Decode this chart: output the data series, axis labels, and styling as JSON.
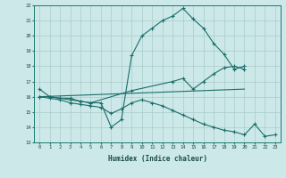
{
  "xlabel": "Humidex (Indice chaleur)",
  "bg_color": "#cce8e8",
  "line_color": "#1a6e6a",
  "grid_color": "#aacccc",
  "xlim": [
    -0.5,
    23.5
  ],
  "ylim": [
    13,
    22
  ],
  "xticks": [
    0,
    1,
    2,
    3,
    4,
    5,
    6,
    7,
    8,
    9,
    10,
    11,
    12,
    13,
    14,
    15,
    16,
    17,
    18,
    19,
    20,
    21,
    22,
    23
  ],
  "yticks": [
    13,
    14,
    15,
    16,
    17,
    18,
    19,
    20,
    21,
    22
  ],
  "line1_x": [
    0,
    1,
    2,
    3,
    4,
    5,
    6,
    7,
    8,
    9,
    10,
    11,
    12,
    13,
    14,
    15,
    16,
    17,
    18,
    19,
    20
  ],
  "line1_y": [
    16.5,
    16.0,
    15.9,
    15.9,
    15.7,
    15.6,
    15.6,
    14.0,
    14.5,
    18.7,
    20.0,
    20.5,
    21.0,
    21.3,
    21.8,
    21.1,
    20.5,
    19.5,
    18.8,
    17.8,
    18.0
  ],
  "line2_x": [
    0,
    1,
    2,
    3,
    4,
    5,
    9,
    13,
    14,
    15,
    16,
    17,
    18,
    19,
    20
  ],
  "line2_y": [
    16.0,
    16.0,
    15.9,
    15.8,
    15.7,
    15.6,
    16.4,
    17.0,
    17.2,
    16.5,
    17.0,
    17.5,
    17.9,
    18.0,
    17.8
  ],
  "line3_x": [
    0,
    20
  ],
  "line3_y": [
    16.0,
    16.5
  ],
  "line4_x": [
    0,
    1,
    2,
    3,
    4,
    5,
    6,
    7,
    8,
    9,
    10,
    11,
    12,
    13,
    14,
    15,
    16,
    17,
    18,
    19,
    20,
    21,
    22,
    23
  ],
  "line4_y": [
    16.0,
    15.9,
    15.8,
    15.6,
    15.5,
    15.4,
    15.3,
    14.9,
    15.2,
    15.6,
    15.8,
    15.6,
    15.4,
    15.1,
    14.8,
    14.5,
    14.2,
    14.0,
    13.8,
    13.7,
    13.5,
    14.2,
    13.4,
    13.5
  ]
}
